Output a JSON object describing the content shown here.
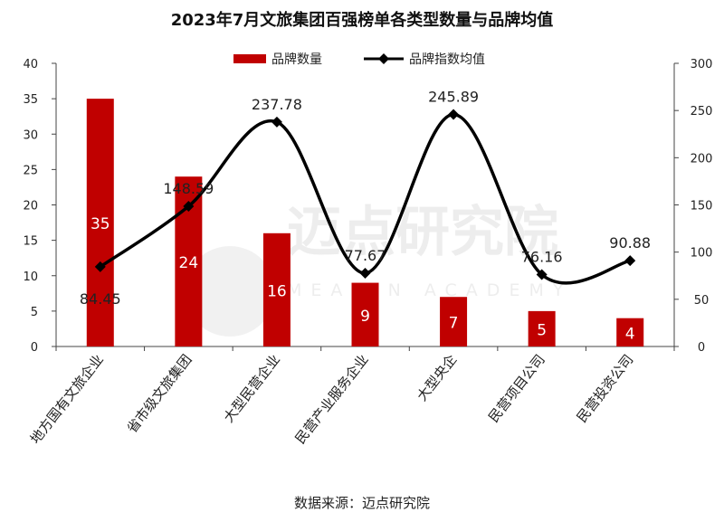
{
  "title": "2023年7月文旅集团百强榜单各类型数量与品牌均值",
  "source": "数据来源：迈点研究院",
  "watermark": {
    "text": "迈点研究院",
    "subtext": "MEADIN ACADEMY"
  },
  "colors": {
    "bar": "#c00000",
    "line": "#000000",
    "bar_label": "#ffffff"
  },
  "chart_data": {
    "type": "bar",
    "categories": [
      "地方国有文旅企业",
      "省市级文旅集团",
      "大型民营企业",
      "民营产业服务企业",
      "大型央企",
      "民营项目公司",
      "民营投资公司"
    ],
    "series": [
      {
        "name": "品牌数量",
        "type": "bar",
        "axis": "left",
        "values": [
          35,
          24,
          16,
          9,
          7,
          5,
          4
        ]
      },
      {
        "name": "品牌指数均值",
        "type": "line",
        "smooth": true,
        "marker": "diamond",
        "axis": "right",
        "values": [
          84.45,
          148.59,
          237.78,
          77.67,
          245.89,
          76.16,
          90.88
        ]
      }
    ],
    "y_left": {
      "min": 0,
      "max": 40,
      "step": 5,
      "ticks": [
        "0",
        "5",
        "10",
        "15",
        "20",
        "25",
        "30",
        "35",
        "40"
      ]
    },
    "y_right": {
      "min": 0,
      "max": 300,
      "step": 50,
      "ticks": [
        "0",
        "50",
        "100",
        "150",
        "200",
        "250",
        "300"
      ]
    },
    "bar_labels": [
      "35",
      "24",
      "16",
      "9",
      "7",
      "5",
      "4"
    ],
    "line_labels": [
      "84.45",
      "148.59",
      "237.78",
      "77.67",
      "245.89",
      "76.16",
      "90.88"
    ],
    "legend": "top-center",
    "grid": false
  }
}
